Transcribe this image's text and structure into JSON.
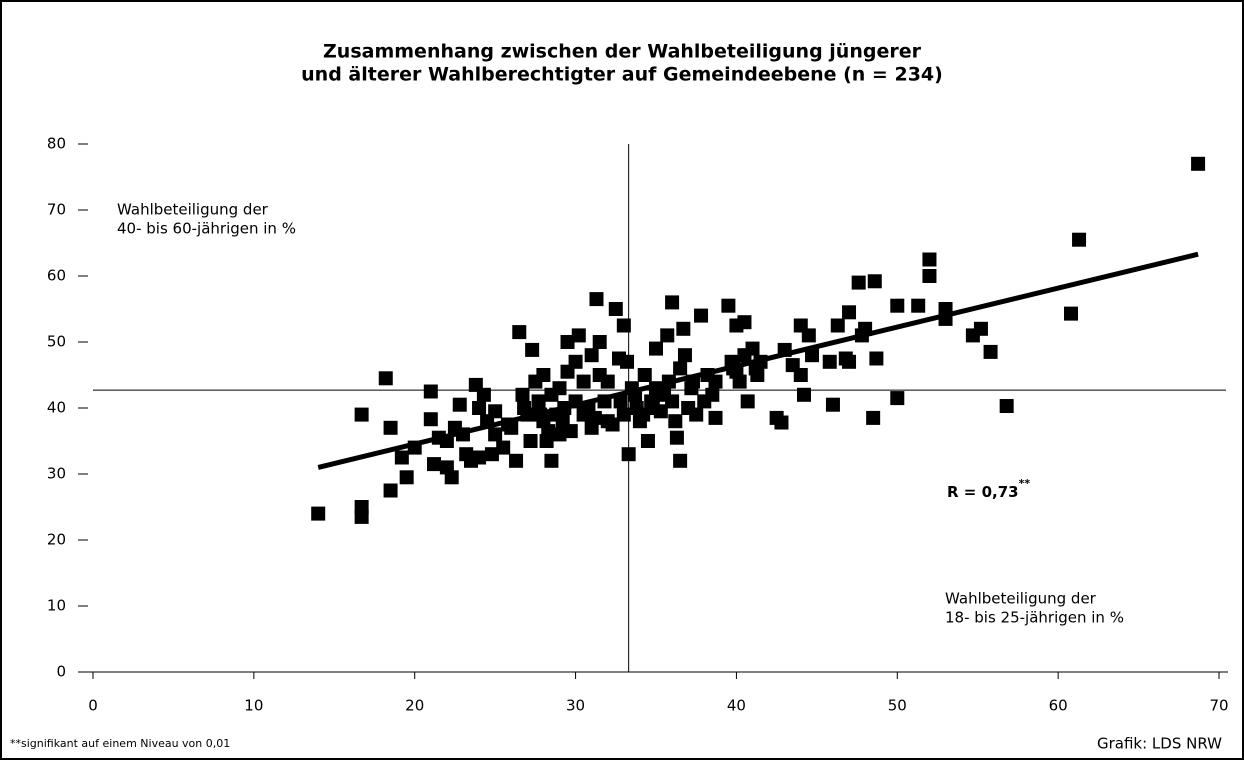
{
  "chart_data": {
    "type": "scatter",
    "title": [
      "Zusammenhang zwischen der Wahlbeteiligung jüngerer",
      "und älterer Wahlberechtigter auf Gemeindeebene (n = 234)"
    ],
    "y_label": [
      "Wahlbeteiligung der",
      "40- bis 60-jährigen in %"
    ],
    "x_label": [
      "Wahlbeteiligung der",
      "18- bis 25-jährigen in %"
    ],
    "r_label": "R = 0,73",
    "r_sup": "**",
    "footnote": "**signifikant auf einem Niveau von 0,01",
    "source": "Grafik: LDS NRW",
    "color": "#000000",
    "xlim": [
      0,
      70
    ],
    "xticks": [
      0,
      10,
      20,
      30,
      40,
      50,
      60,
      70
    ],
    "ylim": [
      0,
      80
    ],
    "yticks": [
      0,
      10,
      20,
      30,
      40,
      50,
      60,
      70,
      80
    ],
    "reference_lines": {
      "x": 33.3,
      "y": 42.7
    },
    "trendline": {
      "x": [
        14,
        68.7
      ],
      "y": [
        31,
        63.3
      ]
    },
    "x": [
      14,
      16.7,
      16.7,
      16.7,
      18.2,
      18.5,
      18.5,
      19.2,
      19.5,
      20,
      21,
      21,
      21.2,
      21.5,
      22,
      22.3,
      22.5,
      22.8,
      23.2,
      23.5,
      23.8,
      24,
      24,
      24.3,
      24.5,
      24.8,
      25,
      25,
      25.5,
      26,
      26.3,
      26.5,
      26.7,
      27,
      27.2,
      27.3,
      27.5,
      27.7,
      28,
      28,
      28.2,
      28.5,
      28.5,
      28.8,
      29,
      29,
      29.3,
      29.5,
      29.5,
      29.7,
      30,
      30,
      30.2,
      30.5,
      30.5,
      31,
      31,
      31.3,
      31.5,
      31.5,
      31.8,
      32,
      32,
      32.3,
      32.5,
      32.7,
      33,
      33,
      33.2,
      33.3,
      33.5,
      33.8,
      34,
      34.3,
      34.5,
      34.7,
      35,
      35,
      35.3,
      35.7,
      35.8,
      36,
      36,
      36.3,
      36.5,
      36.5,
      36.7,
      36.8,
      37,
      37.3,
      37.5,
      37.8,
      38,
      38.2,
      38.7,
      38.7,
      39.5,
      39.7,
      40,
      40,
      40.5,
      40.5,
      40.7,
      41,
      41.3,
      41.5,
      42.5,
      42.8,
      43,
      43.5,
      44,
      44,
      44.2,
      44.5,
      44.7,
      45.8,
      46,
      46.3,
      46.8,
      47,
      47,
      47.6,
      47.8,
      48,
      48.5,
      48.6,
      48.7,
      50,
      50,
      51.3,
      52,
      52,
      53,
      53,
      54.7,
      55.2,
      55.8,
      56.8,
      60.8,
      61.3,
      68.7,
      22,
      23,
      25.8,
      26.8,
      27.8,
      28.3,
      29.2,
      30.8,
      31.2,
      32.8,
      33.7,
      34.2,
      34.8,
      35.5,
      36.2,
      37.2,
      38.5,
      39.8,
      40.2,
      41.2
    ],
    "values": [
      24,
      25,
      23.5,
      39,
      44.5,
      27.5,
      37,
      32.5,
      29.5,
      34,
      38.3,
      42.5,
      31.5,
      35.5,
      31,
      29.5,
      37,
      40.5,
      33,
      32,
      43.5,
      40,
      32.5,
      42,
      38,
      33,
      39.5,
      36,
      34,
      37,
      32,
      51.5,
      42,
      39,
      35,
      48.8,
      44,
      41,
      45,
      38,
      35,
      32,
      42,
      39,
      36,
      43,
      40,
      45.5,
      50,
      36.5,
      47,
      41,
      51,
      44,
      39,
      37,
      48,
      56.5,
      50,
      45,
      41,
      38,
      44,
      37.5,
      55,
      47.5,
      52.5,
      39,
      47,
      33,
      43,
      40,
      38,
      45,
      35,
      41,
      49,
      43,
      39.5,
      51,
      44,
      56,
      41,
      35.5,
      32,
      46,
      52,
      48,
      40,
      44,
      39,
      54,
      41,
      45,
      38.5,
      44,
      55.5,
      47,
      52.5,
      45.5,
      53,
      48,
      41,
      49,
      45,
      47,
      38.5,
      37.8,
      48.8,
      46.5,
      52.5,
      45,
      42,
      51,
      48,
      47,
      40.5,
      52.5,
      47.5,
      54.5,
      47,
      59,
      51,
      52,
      38.5,
      59.2,
      47.5,
      55.5,
      41.5,
      55.5,
      62.5,
      60,
      55,
      53.5,
      51,
      52,
      48.5,
      40.3,
      54.3,
      65.5,
      77,
      35,
      36,
      37.5,
      40,
      39,
      36.5,
      38,
      40,
      38.5,
      41,
      42,
      39,
      40,
      42,
      38,
      43,
      42,
      46,
      44,
      46
    ]
  }
}
